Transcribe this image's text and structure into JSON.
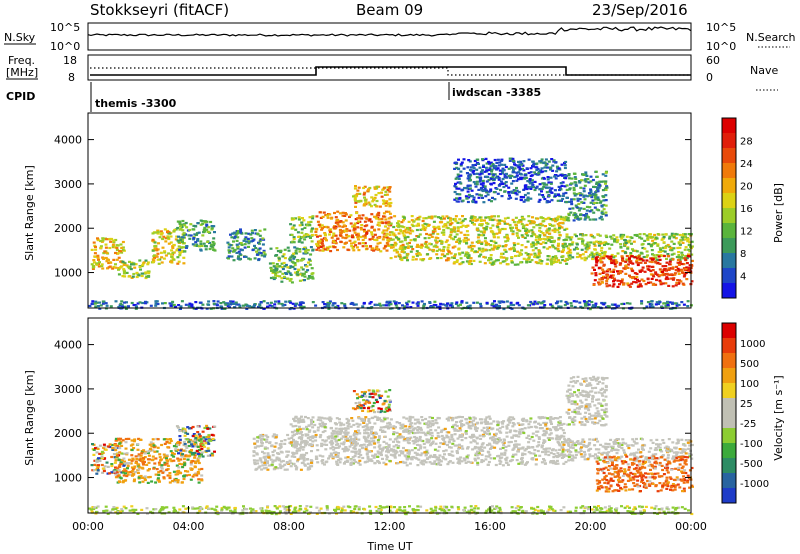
{
  "header": {
    "title": "Stokkseyri (fitACF)",
    "beam": "Beam 09",
    "date": "23/Sep/2016"
  },
  "strip_nsky": {
    "left_label": "N.Sky",
    "left_ticks": [
      "10^5",
      "10^0"
    ],
    "right_ticks": [
      "10^5",
      "10^0"
    ],
    "right_label": "N.Search"
  },
  "strip_freq": {
    "left_label_top": "Freq.",
    "left_label_bottom": "[MHz]",
    "left_ticks": [
      "18",
      "8"
    ],
    "right_ticks": [
      "60",
      "0"
    ],
    "right_label": "Nave"
  },
  "strip_cpid": {
    "label": "CPID",
    "entries": [
      {
        "text": "themis -3300",
        "start_hour": 0
      },
      {
        "text": "iwdscan -3385",
        "start_hour": 14.4
      }
    ]
  },
  "chart_data": [
    {
      "type": "heatmap",
      "name": "power",
      "ylabel": "Slant Range [km]",
      "xlim": [
        0,
        24
      ],
      "ylim": [
        200,
        4600
      ],
      "yticks": [
        "1000",
        "2000",
        "3000",
        "4000"
      ],
      "colorbar_label": "Power [dB]",
      "colorbar_ticks": [
        "28",
        "24",
        "20",
        "16",
        "12",
        "8",
        "4"
      ],
      "colorbar_colors": [
        "#1414e6",
        "#1e46c8",
        "#2878a0",
        "#3c9a5a",
        "#5ab43c",
        "#9ccd28",
        "#dcd214",
        "#f0aa0a",
        "#f07a0a",
        "#e84a0a",
        "#e01e0a",
        "#dc0000"
      ],
      "regions": [
        {
          "x": [
            0.1,
            1.4
          ],
          "y": [
            1100,
            1800
          ],
          "level": 0.6
        },
        {
          "x": [
            1.0,
            2.4
          ],
          "y": [
            900,
            1300
          ],
          "level": 0.45
        },
        {
          "x": [
            2.5,
            3.8
          ],
          "y": [
            1200,
            2000
          ],
          "level": 0.55
        },
        {
          "x": [
            3.5,
            5.0
          ],
          "y": [
            1500,
            2200
          ],
          "level": 0.3
        },
        {
          "x": [
            5.5,
            7.0
          ],
          "y": [
            1300,
            2000
          ],
          "level": 0.25
        },
        {
          "x": [
            7.2,
            8.9
          ],
          "y": [
            800,
            1600
          ],
          "level": 0.35
        },
        {
          "x": [
            8.0,
            8.9
          ],
          "y": [
            1700,
            2300
          ],
          "level": 0.4
        },
        {
          "x": [
            9.0,
            12.0
          ],
          "y": [
            1500,
            2400
          ],
          "level": 0.7
        },
        {
          "x": [
            10.5,
            12.0
          ],
          "y": [
            2500,
            3000
          ],
          "level": 0.6
        },
        {
          "x": [
            12.0,
            14.5
          ],
          "y": [
            1300,
            2300
          ],
          "level": 0.55
        },
        {
          "x": [
            14.5,
            19.0
          ],
          "y": [
            1200,
            2300
          ],
          "level": 0.5
        },
        {
          "x": [
            14.5,
            19.0
          ],
          "y": [
            2600,
            3600
          ],
          "level": 0.12
        },
        {
          "x": [
            19.0,
            20.6
          ],
          "y": [
            2200,
            3300
          ],
          "level": 0.25
        },
        {
          "x": [
            19.0,
            24.0
          ],
          "y": [
            1300,
            1900
          ],
          "level": 0.45
        },
        {
          "x": [
            20.0,
            24.0
          ],
          "y": [
            700,
            1400
          ],
          "level": 0.85
        },
        {
          "x": [
            0.0,
            24.0
          ],
          "y": [
            200,
            380
          ],
          "level": 0.15
        }
      ]
    },
    {
      "type": "heatmap",
      "name": "velocity",
      "ylabel": "Slant Range [km]",
      "xlabel": "Time UT",
      "xlim": [
        0,
        24
      ],
      "ylim": [
        200,
        4600
      ],
      "xticks": [
        "00:00",
        "04:00",
        "08:00",
        "12:00",
        "16:00",
        "20:00",
        "00:00"
      ],
      "yticks": [
        "1000",
        "2000",
        "3000",
        "4000"
      ],
      "colorbar_label": "Velocity [m s⁻¹]",
      "colorbar_ticks": [
        "1000",
        "500",
        "100",
        "25",
        "-25",
        "-100",
        "-500",
        "-1000"
      ],
      "colorbar_colors": [
        "#1e3cc8",
        "#2864a0",
        "#2d8c64",
        "#3caa3c",
        "#8ccd32",
        "#c0c0b4",
        "#c0c0b4",
        "#f0d020",
        "#f0a010",
        "#f07010",
        "#e83c0a",
        "#dc0000"
      ],
      "regions": [
        {
          "x": [
            0.1,
            1.4
          ],
          "y": [
            1100,
            1800
          ],
          "kind": "mixed"
        },
        {
          "x": [
            1.0,
            4.5
          ],
          "y": [
            900,
            1900
          ],
          "kind": "orange"
        },
        {
          "x": [
            3.5,
            5.0
          ],
          "y": [
            1500,
            2200
          ],
          "kind": "mixed"
        },
        {
          "x": [
            6.5,
            8.9
          ],
          "y": [
            1200,
            2000
          ],
          "kind": "grey"
        },
        {
          "x": [
            8.0,
            9.0
          ],
          "y": [
            1700,
            2400
          ],
          "kind": "grey"
        },
        {
          "x": [
            9.0,
            19.0
          ],
          "y": [
            1300,
            2400
          ],
          "kind": "grey"
        },
        {
          "x": [
            10.5,
            12.0
          ],
          "y": [
            2500,
            3000
          ],
          "kind": "mixed"
        },
        {
          "x": [
            19.0,
            20.6
          ],
          "y": [
            2200,
            3300
          ],
          "kind": "grey"
        },
        {
          "x": [
            19.0,
            24.0
          ],
          "y": [
            1400,
            1900
          ],
          "kind": "grey"
        },
        {
          "x": [
            20.2,
            24.0
          ],
          "y": [
            700,
            1500
          ],
          "kind": "red"
        },
        {
          "x": [
            0.0,
            24.0
          ],
          "y": [
            200,
            380
          ],
          "kind": "green"
        }
      ]
    }
  ]
}
